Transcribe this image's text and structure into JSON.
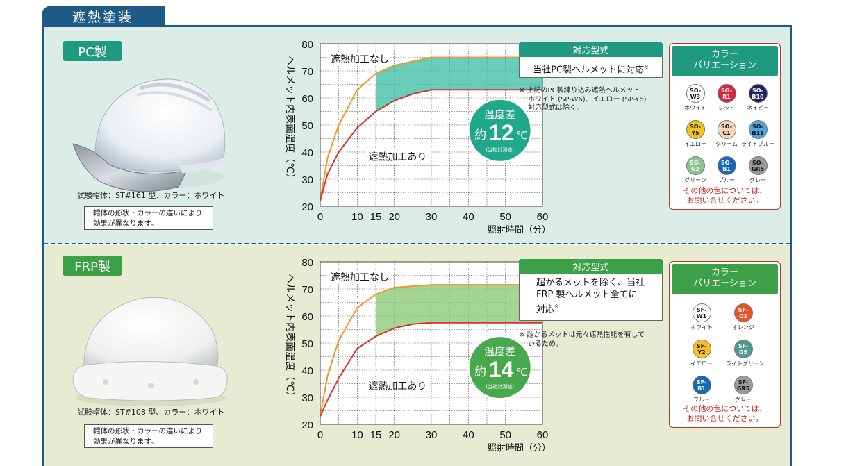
{
  "header": {
    "title": "遮熱塗装"
  },
  "pc": {
    "label": "PC製",
    "test_caption": "試験帽体：ST#161 型、カラー：ホワイト",
    "note_lines": [
      "帽体の形状・カラーの違いにより",
      "効果が異なります。"
    ],
    "chart": {
      "ylabel": "ヘルメット内表面温度（℃）",
      "xlabel": "照射時間（分）",
      "label_without": "遮熱加工なし",
      "label_with": "遮熱加工あり",
      "badge_top": "温度差",
      "badge_prefix": "約",
      "badge_value": "12",
      "badge_unit": "℃",
      "badge_note": "(当社計測値)",
      "y_ticks": [
        "20",
        "30",
        "40",
        "50",
        "60",
        "70",
        "80"
      ],
      "x_ticks": [
        "0",
        "10",
        "15",
        "20",
        "30",
        "40",
        "50",
        "60"
      ]
    },
    "info": {
      "title": "対応型式",
      "body_lines": [
        "当社PC製ヘルメットに対応"
      ],
      "mark": "※",
      "note_lines": [
        "※ 上記のPC製練り込み遮熱ヘルメット",
        "ホワイト (SP-W6)、イエロー (SP-Y6)",
        "対応型式は除く。"
      ]
    },
    "colors": {
      "head_lines": [
        "カラー",
        "バリエーション"
      ],
      "items": [
        {
          "code1": "SO-",
          "code2": "W3",
          "name": "ホワイト",
          "color": "#ffffff",
          "text": "#111111"
        },
        {
          "code1": "SO-",
          "code2": "R1",
          "name": "レッド",
          "color": "#d7263d",
          "text": "#ffffff"
        },
        {
          "code1": "SO-",
          "code2": "B10",
          "name": "ネイビー",
          "color": "#1f1f5e",
          "text": "#ffffff"
        },
        {
          "code1": "SO-",
          "code2": "Y5",
          "name": "イエロー",
          "color": "#f5c21b",
          "text": "#111111"
        },
        {
          "code1": "SO-",
          "code2": "C1",
          "name": "クリーム",
          "color": "#f6d6b6",
          "text": "#111111"
        },
        {
          "code1": "SO-",
          "code2": "B11",
          "name": "ライトブルー",
          "color": "#4fa6de",
          "text": "#111111"
        },
        {
          "code1": "SO-",
          "code2": "G2",
          "name": "グリーン",
          "color": "#8cc191",
          "text": "#ffffff"
        },
        {
          "code1": "SO-",
          "code2": "B1",
          "name": "ブルー",
          "color": "#1769b6",
          "text": "#ffffff"
        },
        {
          "code1": "SO-",
          "code2": "GR5",
          "name": "グレー",
          "color": "#9b9b9b",
          "text": "#111111"
        }
      ],
      "foot_lines": [
        "その他の色については、",
        "お問い合せください。"
      ]
    }
  },
  "frp": {
    "label": "FRP製",
    "test_caption": "試験帽体：ST#108 型、カラー：ホワイト",
    "note_lines": [
      "帽体の形状・カラーの違いにより",
      "効果が異なります。"
    ],
    "chart": {
      "ylabel": "ヘルメット内表面温度（℃）",
      "xlabel": "照射時間（分）",
      "label_without": "遮熱加工なし",
      "label_with": "遮熱加工あり",
      "badge_top": "温度差",
      "badge_prefix": "約",
      "badge_value": "14",
      "badge_unit": "℃",
      "badge_note": "(当社計測値)",
      "y_ticks": [
        "20",
        "30",
        "40",
        "50",
        "60",
        "70",
        "80"
      ],
      "x_ticks": [
        "0",
        "10",
        "15",
        "20",
        "30",
        "40",
        "50",
        "60"
      ]
    },
    "info": {
      "title": "対応型式",
      "body_lines": [
        "超かるメットを除く、当社",
        "FRP 製ヘルメット全てに",
        "対応"
      ],
      "mark": "※",
      "note_lines": [
        "※ 超かるメットは元々遮熱性能を有して",
        "いるため。"
      ]
    },
    "colors": {
      "head_lines": [
        "カラー",
        "バリエーション"
      ],
      "items": [
        {
          "code1": "SF-",
          "code2": "W1",
          "name": "ホワイト",
          "color": "#ffffff",
          "text": "#111111"
        },
        {
          "code1": "SF-",
          "code2": "O1",
          "name": "オレンジ",
          "color": "#e8532a",
          "text": "#ffffff"
        },
        {
          "code1": "SF-",
          "code2": "Y2",
          "name": "イエロー",
          "color": "#f5c21b",
          "text": "#111111"
        },
        {
          "code1": "SF-",
          "code2": "G5",
          "name": "ライトグリーン",
          "color": "#4f9a8a",
          "text": "#ffffff"
        },
        {
          "code1": "SF-",
          "code2": "B1",
          "name": "ブルー",
          "color": "#1769b6",
          "text": "#ffffff"
        },
        {
          "code1": "SF-",
          "code2": "GR5",
          "name": "グレー",
          "color": "#9b9b9b",
          "text": "#111111"
        }
      ],
      "foot_lines": [
        "その他の色については、",
        "お問い合せください。"
      ]
    }
  },
  "chart_data": [
    {
      "type": "line",
      "xlabel": "照射時間（分）",
      "ylabel": "ヘルメット内表面温度（℃）",
      "xlim": [
        0,
        60
      ],
      "ylim": [
        20,
        80
      ],
      "x_ticks": [
        0,
        10,
        15,
        20,
        30,
        40,
        50,
        60
      ],
      "y_ticks": [
        20,
        30,
        40,
        50,
        60,
        70,
        80
      ],
      "grid": true,
      "series": [
        {
          "name": "遮熱加工なし",
          "color": "#f0952a",
          "x": [
            0,
            2,
            5,
            10,
            15,
            20,
            25,
            30,
            40,
            50,
            60
          ],
          "y": [
            22,
            38,
            50,
            63,
            69,
            72,
            73.5,
            75,
            75,
            75,
            75
          ]
        },
        {
          "name": "遮熱加工あり",
          "color": "#d9302a",
          "x": [
            0,
            2,
            5,
            10,
            15,
            20,
            25,
            30,
            40,
            50,
            60
          ],
          "y": [
            22,
            32,
            40,
            49,
            55,
            59,
            61.5,
            63,
            63,
            63,
            63
          ]
        }
      ],
      "shaded_from_x": 15,
      "shade_color": "#43c0a8",
      "annotation": "温度差 約12℃"
    },
    {
      "type": "line",
      "xlabel": "照射時間（分）",
      "ylabel": "ヘルメット内表面温度（℃）",
      "xlim": [
        0,
        60
      ],
      "ylim": [
        20,
        80
      ],
      "x_ticks": [
        0,
        10,
        15,
        20,
        30,
        40,
        50,
        60
      ],
      "y_ticks": [
        20,
        30,
        40,
        50,
        60,
        70,
        80
      ],
      "grid": true,
      "series": [
        {
          "name": "遮熱加工なし",
          "color": "#f0952a",
          "x": [
            0,
            2,
            5,
            10,
            15,
            20,
            25,
            30,
            40,
            50,
            60
          ],
          "y": [
            23,
            38,
            51,
            63,
            68,
            70.5,
            71,
            71.5,
            71.5,
            71.5,
            71.5
          ]
        },
        {
          "name": "遮熱加工あり",
          "color": "#d9302a",
          "x": [
            0,
            2,
            5,
            10,
            15,
            20,
            25,
            30,
            40,
            50,
            60
          ],
          "y": [
            23,
            29,
            37,
            48,
            52.5,
            55.5,
            57,
            57.5,
            57.5,
            57.5,
            57.5
          ]
        }
      ],
      "shaded_from_x": 15,
      "shade_color": "#8fca7a",
      "annotation": "温度差 約14℃"
    }
  ]
}
